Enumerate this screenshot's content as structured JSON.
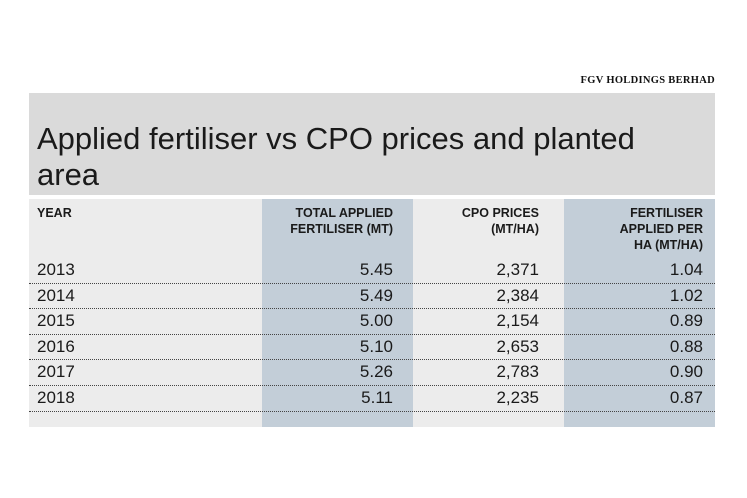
{
  "source": "FGV HOLDINGS BERHAD",
  "title": "Applied fertiliser vs CPO prices and planted area",
  "chart_data": {
    "type": "table",
    "title": "Applied fertiliser vs CPO prices and planted area",
    "columns": [
      "YEAR",
      "TOTAL APPLIED FERTILISER (MT)",
      "CPO PRICES (MT/HA)",
      "FERTILISER APPLIED PER HA (MT/HA)"
    ],
    "rows": [
      [
        "2013",
        "5.45",
        "2,371",
        "1.04"
      ],
      [
        "2014",
        "5.49",
        "2,384",
        "1.02"
      ],
      [
        "2015",
        "5.00",
        "2,154",
        "0.89"
      ],
      [
        "2016",
        "5.10",
        "2,653",
        "0.88"
      ],
      [
        "2017",
        "5.26",
        "2,783",
        "0.90"
      ],
      [
        "2018",
        "5.11",
        "2,235",
        "0.87"
      ]
    ]
  },
  "colors": {
    "title_background": "#dadada",
    "table_background": "#ececec",
    "highlight_column": "#c3ced8"
  }
}
